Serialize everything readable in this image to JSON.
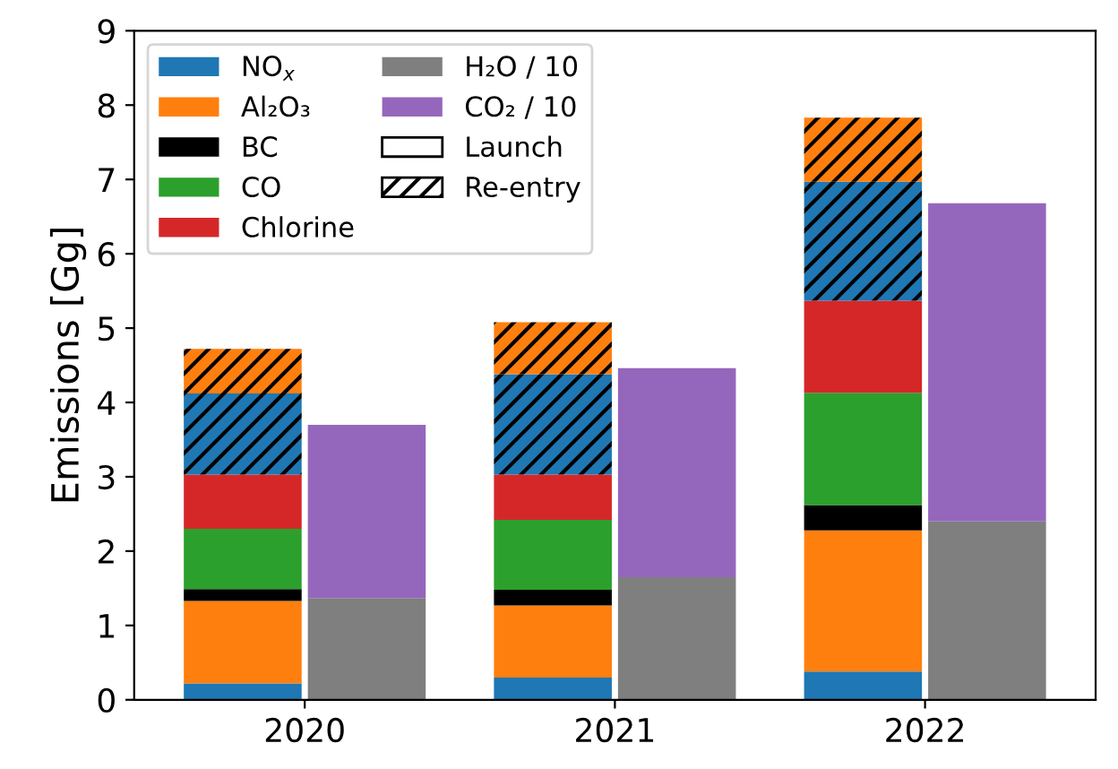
{
  "chart_data": {
    "type": "bar",
    "ylabel": "Emissions [Gg]",
    "series": [
      {
        "name": "NO$_{x}$",
        "color": "#1f77b4",
        "x": [
          2019.8,
          2020.8,
          2021.8
        ],
        "base": [
          0,
          0,
          0
        ],
        "values": [
          0.22,
          0.3,
          0.38
        ]
      },
      {
        "name": "Al₂O₃",
        "color": "#ff7f0e",
        "x": [
          2019.8,
          2020.8,
          2021.8
        ],
        "base": [
          0.22,
          0.3,
          0.38
        ],
        "values": [
          1.11,
          0.97,
          1.9
        ]
      },
      {
        "name": "BC",
        "color": "#000000",
        "x": [
          2019.8,
          2020.8,
          2021.8
        ],
        "base": [
          1.33,
          1.27,
          2.28
        ],
        "values": [
          0.16,
          0.21,
          0.34
        ]
      },
      {
        "name": "CO",
        "color": "#2ca02c",
        "x": [
          2019.8,
          2020.8,
          2021.8
        ],
        "base": [
          1.49,
          1.48,
          2.62
        ],
        "values": [
          0.81,
          0.94,
          1.51
        ]
      },
      {
        "name": "Chlorine",
        "color": "#d62728",
        "x": [
          2019.8,
          2020.8,
          2021.8
        ],
        "base": [
          2.3,
          2.42,
          4.13
        ],
        "values": [
          0.73,
          0.61,
          1.24
        ]
      },
      {
        "color": "#1f77b4",
        "x": [
          2019.8,
          2020.8,
          2021.8
        ],
        "base": [
          3.03,
          3.03,
          5.37
        ],
        "values": [
          1.09,
          1.35,
          1.6
        ]
      },
      {
        "color": "#ff7f0e",
        "x": [
          2019.8,
          2020.8,
          2021.8
        ],
        "base": [
          4.12,
          4.38,
          6.97
        ],
        "values": [
          0.6,
          0.7,
          0.86
        ]
      },
      {
        "name": "H₂O / 10",
        "color": "#7f7f7f",
        "x": [
          2020.2,
          2021.2,
          2022.2
        ],
        "base": [
          0,
          0,
          0
        ],
        "values": [
          1.37,
          1.65,
          2.4
        ]
      },
      {
        "name": "CO₂ / 10",
        "color": "#9467bd",
        "x": [
          2020.2,
          2021.2,
          2022.2
        ],
        "base": [
          1.37,
          1.65,
          2.4
        ],
        "values": [
          2.33,
          2.81,
          4.28
        ]
      }
    ],
    "annotations": [
      "Launch",
      "Re-entry"
    ],
    "xlim": [
      2019.45,
      2022.55
    ],
    "xticks": [
      2020,
      2021,
      2022
    ],
    "ylim": [
      0,
      9
    ],
    "yticks": [
      0,
      1,
      2,
      3,
      4,
      5,
      6,
      7,
      8,
      9
    ],
    "grid": false,
    "legend": "top left"
  }
}
